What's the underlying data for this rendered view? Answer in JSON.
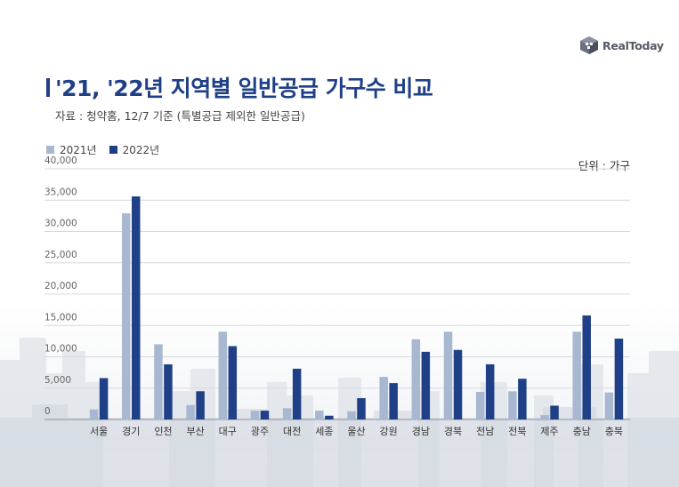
{
  "header": {
    "logo_text": "RealToday",
    "title": "'21, '22년 지역별 일반공급 가구수 비교",
    "source": "자료 : 청약홈, 12/7 기준 (특별공급 제외한 일반공급)",
    "unit": "단위 : 가구"
  },
  "colors": {
    "series_2021": "#a8b8d0",
    "series_2022": "#1f3f86",
    "title": "#1f3f86"
  },
  "icons": {
    "logo": "realtoday-cube-icon"
  },
  "chart_data": {
    "type": "bar",
    "categories": [
      "서울",
      "경기",
      "인천",
      "부산",
      "대구",
      "광주",
      "대전",
      "세종",
      "울산",
      "강원",
      "경남",
      "경북",
      "전남",
      "전북",
      "제주",
      "충남",
      "충북"
    ],
    "series": [
      {
        "name": "2021년",
        "values": [
          1600,
          32900,
          12000,
          2300,
          14000,
          1400,
          1800,
          1400,
          1300,
          6800,
          12800,
          14000,
          4400,
          4500,
          700,
          14000,
          4300
        ]
      },
      {
        "name": "2022년",
        "values": [
          6600,
          35600,
          8800,
          4500,
          11700,
          1400,
          8100,
          600,
          3400,
          5800,
          10800,
          11100,
          8800,
          6500,
          2200,
          16600,
          12900
        ]
      }
    ],
    "y_ticks": [
      "0",
      "5,000",
      "10,000",
      "15,000",
      "20,000",
      "25,000",
      "30,000",
      "35,000",
      "40,000"
    ],
    "ylim": [
      0,
      40000
    ],
    "grid": true,
    "legend_position": "top-left",
    "xlabel": "",
    "ylabel": ""
  }
}
